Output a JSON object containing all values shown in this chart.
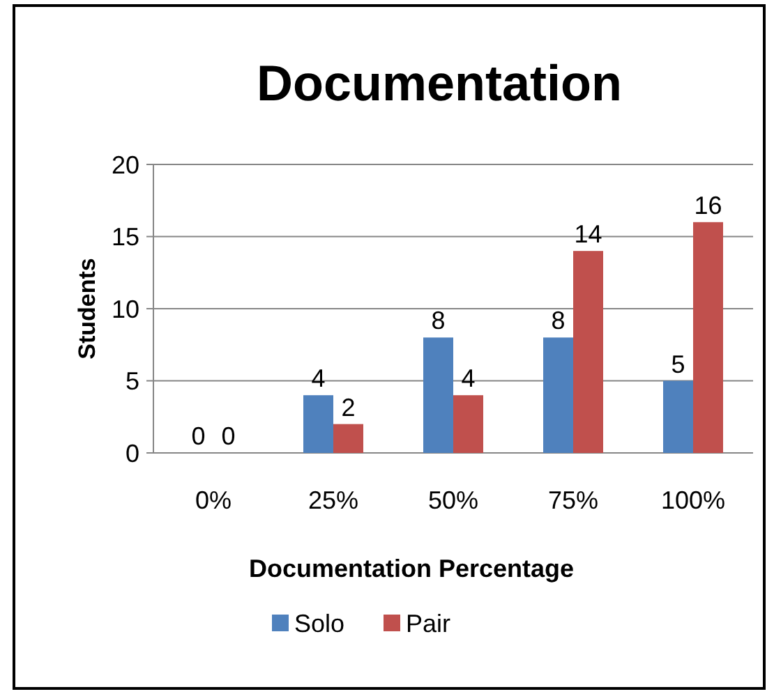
{
  "chart_data": {
    "type": "bar",
    "title": "Documentation",
    "xlabel": "Documentation Percentage",
    "ylabel": "Students",
    "categories": [
      "0%",
      "25%",
      "50%",
      "75%",
      "100%"
    ],
    "series": [
      {
        "name": "Solo",
        "color": "#4f81bd",
        "values": [
          0,
          4,
          8,
          8,
          5
        ]
      },
      {
        "name": "Pair",
        "color": "#c0504d",
        "values": [
          0,
          2,
          4,
          14,
          16
        ]
      }
    ],
    "ylim": [
      0,
      20
    ],
    "yticks": [
      0,
      5,
      10,
      15,
      20
    ],
    "grid": "y",
    "legend": "bottom",
    "data_labels": true
  }
}
